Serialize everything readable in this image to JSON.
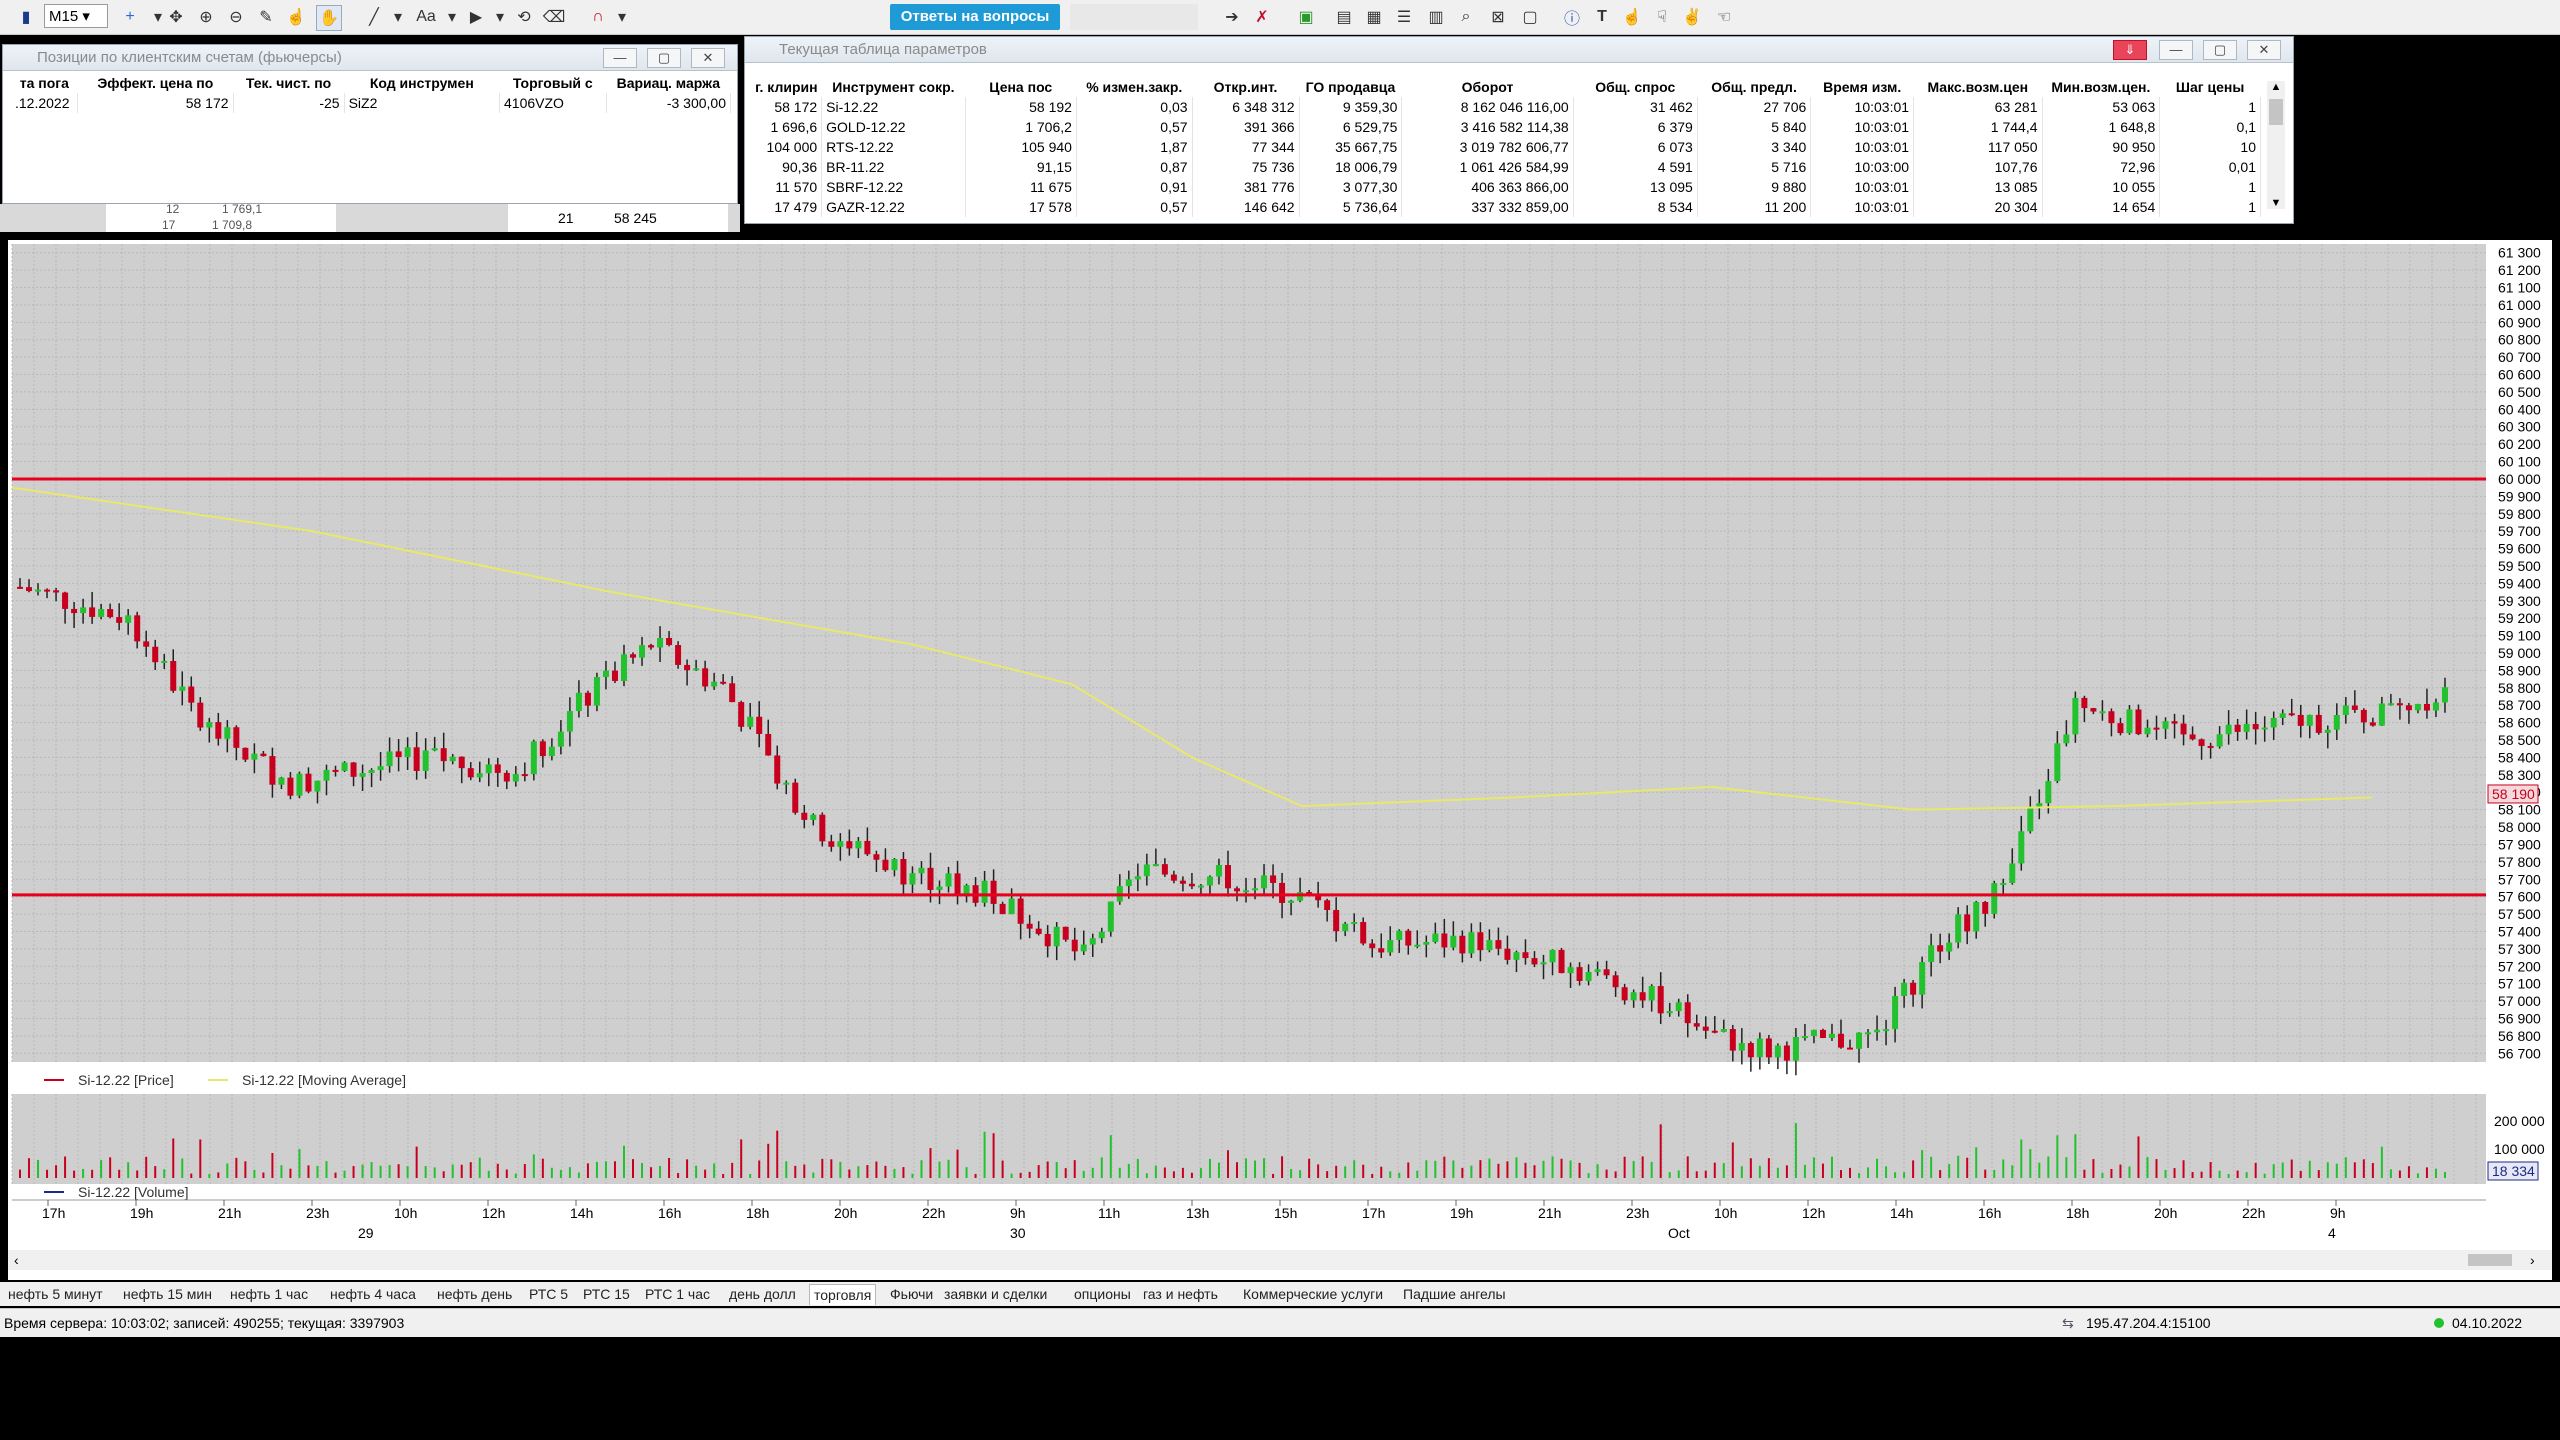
{
  "toolbar": {
    "timeframe": "M15",
    "answers_button": "Ответы на вопросы"
  },
  "positions_window": {
    "title": "Позиции по клиентским счетам (фьючерсы)",
    "columns": [
      "та пога",
      "Эффект. цена по",
      "Тек. чист. по",
      "Код инструмен",
      "Торговый с",
      "Вариац. маржа"
    ],
    "rows": [
      [
        ".12.2022",
        "58 172",
        "-25",
        "SiZ2",
        "4106VZO",
        "-3 300,00"
      ]
    ],
    "behind_values": [
      "12",
      "1 769,1",
      "17",
      "1 709,8",
      "21",
      "58 245"
    ]
  },
  "params_window": {
    "title": "Текущая таблица параметров",
    "columns": [
      "г. клирин",
      "Инструмент сокр.",
      "Цена пос",
      "% измен.закр.",
      "Откр.инт.",
      "ГО продавца",
      "Оборот",
      "Общ. спрос",
      "Общ. предл.",
      "Время изм.",
      "Макс.возм.цен",
      "Мин.возм.цен.",
      "Шаг цены"
    ],
    "rows": [
      [
        "58 172",
        "Si-12.22",
        "58 192",
        "0,03",
        "6 348 312",
        "9 359,30",
        "8 162 046 116,00",
        "31 462",
        "27 706",
        "10:03:01",
        "63 281",
        "53 063",
        "1"
      ],
      [
        "1 696,6",
        "GOLD-12.22",
        "1 706,2",
        "0,57",
        "391 366",
        "6 529,75",
        "3 416 582 114,38",
        "6 379",
        "5 840",
        "10:03:01",
        "1 744,4",
        "1 648,8",
        "0,1"
      ],
      [
        "104 000",
        "RTS-12.22",
        "105 940",
        "1,87",
        "77 344",
        "35 667,75",
        "3 019 782 606,77",
        "6 073",
        "3 340",
        "10:03:01",
        "117 050",
        "90 950",
        "10"
      ],
      [
        "90,36",
        "BR-11.22",
        "91,15",
        "0,87",
        "75 736",
        "18 006,79",
        "1 061 426 584,99",
        "4 591",
        "5 716",
        "10:03:00",
        "107,76",
        "72,96",
        "0,01"
      ],
      [
        "11 570",
        "SBRF-12.22",
        "11 675",
        "0,91",
        "381 776",
        "3 077,30",
        "406 363 866,00",
        "13 095",
        "9 880",
        "10:03:01",
        "13 085",
        "10 055",
        "1"
      ],
      [
        "17 479",
        "GAZR-12.22",
        "17 578",
        "0,57",
        "146 642",
        "5 736,64",
        "337 332 859,00",
        "8 534",
        "11 200",
        "10:03:01",
        "20 304",
        "14 654",
        "1"
      ]
    ]
  },
  "chart_data": {
    "type": "candlestick",
    "instrument": "Si-12.22",
    "legend_price": "Si-12.22 [Price]",
    "legend_ma": "Si-12.22 [Moving Average]",
    "legend_volume": "Si-12.22 [Volume]",
    "y_ticks": [
      "61 300",
      "61 200",
      "61 100",
      "61 000",
      "60 900",
      "60 800",
      "60 700",
      "60 600",
      "60 500",
      "60 400",
      "60 300",
      "60 200",
      "60 100",
      "60 000",
      "59 900",
      "59 800",
      "59 700",
      "59 600",
      "59 500",
      "59 400",
      "59 300",
      "59 200",
      "59 100",
      "59 000",
      "58 900",
      "58 800",
      "58 700",
      "58 600",
      "58 500",
      "58 400",
      "58 300",
      "58 200",
      "58 100",
      "58 000",
      "57 900",
      "57 800",
      "57 700",
      "57 600",
      "57 500",
      "57 400",
      "57 300",
      "57 200",
      "57 100",
      "57 000",
      "56 900",
      "56 800",
      "56 700"
    ],
    "ylim": [
      56650,
      61350
    ],
    "current_price_label": "58 190",
    "current_price": 58190,
    "hlines": [
      60000,
      57610
    ],
    "volume_ticks": [
      "200 000",
      "100 000"
    ],
    "volume_current": "18 334",
    "x_ticks": [
      "17h",
      "19h",
      "21h",
      "23h",
      "10h",
      "12h",
      "14h",
      "16h",
      "18h",
      "20h",
      "22h",
      "9h",
      "11h",
      "13h",
      "15h",
      "17h",
      "19h",
      "21h",
      "23h",
      "10h",
      "12h",
      "14h",
      "16h",
      "18h",
      "20h",
      "22h",
      "9h"
    ],
    "date_labels": [
      "29",
      "30",
      "Oct",
      "4"
    ],
    "colors": {
      "up": "#22c22e",
      "down": "#c8001e",
      "ma": "#e8e86a",
      "hline": "#e8001c",
      "grid": "#d0d0d0"
    }
  },
  "tabs": {
    "items": [
      "нефть 5 минут",
      "нефть 15 мин",
      "нефть 1 час",
      "нефть 4 часа",
      "нефть день",
      "РТС 5",
      "РТС 15",
      "РТС 1 час",
      "день долл",
      "торговля",
      "Фьючи",
      "заявки и сделки",
      "опционы",
      "газ и нефть",
      "Коммерческие услуги",
      "Падшие ангелы"
    ],
    "active": "торговля"
  },
  "status": {
    "server": "Время сервера: 10:03:02; записей: 490255; текущая: 3397903",
    "address": "195.47.204.4:15100",
    "date": "04.10.2022"
  }
}
